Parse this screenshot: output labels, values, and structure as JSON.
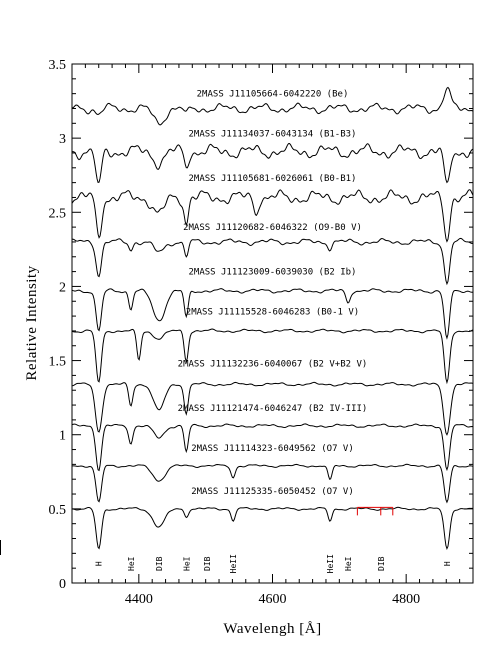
{
  "chart_data": {
    "type": "line",
    "xlabel": "Wavelengh [Å]",
    "ylabel": "Relative Intensity",
    "xlim": [
      4300,
      4900
    ],
    "ylim": [
      0,
      3.5
    ],
    "x_ticks": [
      4400,
      4600,
      4800
    ],
    "x_tick_labels": [
      "4400",
      "4600",
      "4800"
    ],
    "y_ticks": [
      0,
      0.5,
      1,
      1.5,
      2,
      2.5,
      3,
      3.5
    ],
    "y_tick_labels": [
      "0",
      "0.5",
      "1",
      "1.5",
      "2",
      "2.5",
      "3",
      "3.5"
    ],
    "grid": false,
    "series": [
      {
        "name": "2MASS J11105664-6042220 (Be)",
        "baseline": 3.2,
        "label_y": 3.3,
        "wiggle": 0.035,
        "color": "#000000",
        "lines": [
          {
            "x": 4861,
            "depth": -0.13,
            "width": 5
          },
          {
            "x": 4430,
            "depth": 0.1,
            "width": 8
          },
          {
            "x": 4340,
            "depth": 0.04,
            "width": 4
          },
          {
            "x": 4471,
            "depth": 0.05,
            "width": 3
          }
        ]
      },
      {
        "name": "2MASS J11134037-6043134 (B1-B3)",
        "baseline": 2.91,
        "label_y": 3.03,
        "wiggle": 0.05,
        "color": "#000000",
        "lines": [
          {
            "x": 4340,
            "depth": 0.25,
            "width": 4
          },
          {
            "x": 4861,
            "depth": 0.25,
            "width": 4
          },
          {
            "x": 4430,
            "depth": 0.07,
            "width": 8
          },
          {
            "x": 4471,
            "depth": 0.1,
            "width": 3
          }
        ]
      },
      {
        "name": "2MASS J11105681-6026061 (B0-B1)",
        "baseline": 2.6,
        "label_y": 2.73,
        "wiggle": 0.05,
        "color": "#000000",
        "lines": [
          {
            "x": 4340,
            "depth": 0.27,
            "width": 4
          },
          {
            "x": 4861,
            "depth": 0.27,
            "width": 4
          },
          {
            "x": 4430,
            "depth": 0.12,
            "width": 8
          },
          {
            "x": 4471,
            "depth": 0.17,
            "width": 3
          },
          {
            "x": 4575,
            "depth": 0.1,
            "width": 3
          }
        ]
      },
      {
        "name": "2MASS J11120682-6046322 (O9-B0 V)",
        "baseline": 2.3,
        "label_y": 2.4,
        "wiggle": 0.022,
        "color": "#000000",
        "lines": [
          {
            "x": 4340,
            "depth": 0.22,
            "width": 4
          },
          {
            "x": 4861,
            "depth": 0.28,
            "width": 4
          },
          {
            "x": 4430,
            "depth": 0.07,
            "width": 8
          },
          {
            "x": 4471,
            "depth": 0.1,
            "width": 3
          },
          {
            "x": 4388,
            "depth": 0.05,
            "width": 3
          },
          {
            "x": 4686,
            "depth": 0.04,
            "width": 3
          }
        ]
      },
      {
        "name": "2MASS J11123009-6039030 (B2 Ib)",
        "baseline": 1.97,
        "label_y": 2.1,
        "wiggle": 0.015,
        "color": "#000000",
        "lines": [
          {
            "x": 4340,
            "depth": 0.27,
            "width": 4
          },
          {
            "x": 4861,
            "depth": 0.32,
            "width": 4
          },
          {
            "x": 4430,
            "depth": 0.2,
            "width": 9
          },
          {
            "x": 4388,
            "depth": 0.12,
            "width": 3
          },
          {
            "x": 4471,
            "depth": 0.18,
            "width": 3
          },
          {
            "x": 4713,
            "depth": 0.08,
            "width": 3
          }
        ]
      },
      {
        "name": "2MASS J11115528-6046283 (B0-1 V)",
        "baseline": 1.7,
        "label_y": 1.83,
        "wiggle": 0.012,
        "color": "#000000",
        "lines": [
          {
            "x": 4340,
            "depth": 0.35,
            "width": 4
          },
          {
            "x": 4861,
            "depth": 0.35,
            "width": 4
          },
          {
            "x": 4400,
            "depth": 0.2,
            "width": 3
          },
          {
            "x": 4430,
            "depth": 0.05,
            "width": 8
          },
          {
            "x": 4471,
            "depth": 0.2,
            "width": 3
          }
        ]
      },
      {
        "name": "2MASS J11132236-6040067 (B2 V+B2 V)",
        "baseline": 1.34,
        "label_y": 1.48,
        "wiggle": 0.012,
        "color": "#000000",
        "lines": [
          {
            "x": 4340,
            "depth": 0.32,
            "width": 5
          },
          {
            "x": 4861,
            "depth": 0.33,
            "width": 5
          },
          {
            "x": 4388,
            "depth": 0.15,
            "width": 3
          },
          {
            "x": 4430,
            "depth": 0.18,
            "width": 8
          },
          {
            "x": 4471,
            "depth": 0.2,
            "width": 3
          }
        ]
      },
      {
        "name": "2MASS J11121474-6046247 (B2 IV-III)",
        "baseline": 1.06,
        "label_y": 1.18,
        "wiggle": 0.012,
        "color": "#000000",
        "lines": [
          {
            "x": 4340,
            "depth": 0.3,
            "width": 4
          },
          {
            "x": 4861,
            "depth": 0.3,
            "width": 4
          },
          {
            "x": 4388,
            "depth": 0.12,
            "width": 3
          },
          {
            "x": 4430,
            "depth": 0.08,
            "width": 8
          },
          {
            "x": 4471,
            "depth": 0.18,
            "width": 3
          }
        ]
      },
      {
        "name": "2MASS J11114323-6049562 (O7 V)",
        "baseline": 0.79,
        "label_y": 0.91,
        "wiggle": 0.01,
        "color": "#000000",
        "lines": [
          {
            "x": 4340,
            "depth": 0.25,
            "width": 4
          },
          {
            "x": 4861,
            "depth": 0.25,
            "width": 4
          },
          {
            "x": 4430,
            "depth": 0.1,
            "width": 9
          },
          {
            "x": 4541,
            "depth": 0.08,
            "width": 3
          },
          {
            "x": 4686,
            "depth": 0.1,
            "width": 3
          }
        ]
      },
      {
        "name": "2MASS J11125335-6050452 (O7 V)",
        "baseline": 0.5,
        "label_y": 0.62,
        "wiggle": 0.01,
        "color": "#000000",
        "lines": [
          {
            "x": 4340,
            "depth": 0.27,
            "width": 4
          },
          {
            "x": 4861,
            "depth": 0.27,
            "width": 4
          },
          {
            "x": 4430,
            "depth": 0.12,
            "width": 9
          },
          {
            "x": 4471,
            "depth": 0.05,
            "width": 3
          },
          {
            "x": 4541,
            "depth": 0.08,
            "width": 3
          },
          {
            "x": 4686,
            "depth": 0.08,
            "width": 3
          }
        ]
      }
    ],
    "line_ids": [
      {
        "label": "H",
        "x": 4340,
        "color": "#000000"
      },
      {
        "label": "HeI",
        "x": 4388,
        "color": "#000000"
      },
      {
        "label": "DIB",
        "x": 4430,
        "color": "#e00000"
      },
      {
        "label": "HeI",
        "x": 4471,
        "color": "#000000"
      },
      {
        "label": "DIB",
        "x": 4502,
        "color": "#e00000"
      },
      {
        "label": "HeII",
        "x": 4541,
        "color": "#000000"
      },
      {
        "label": "HeII",
        "x": 4686,
        "color": "#000000"
      },
      {
        "label": "HeI",
        "x": 4713,
        "color": "#000000"
      },
      {
        "label": "DIB",
        "x": 4762,
        "color": "#e00000"
      },
      {
        "label": "H",
        "x": 4861,
        "color": "#000000"
      }
    ],
    "dib_bracket": {
      "x_start": 4727,
      "x_end": 4780,
      "ticks": [
        4727,
        4762,
        4780
      ],
      "y": 0.51,
      "color": "#e00000"
    }
  }
}
